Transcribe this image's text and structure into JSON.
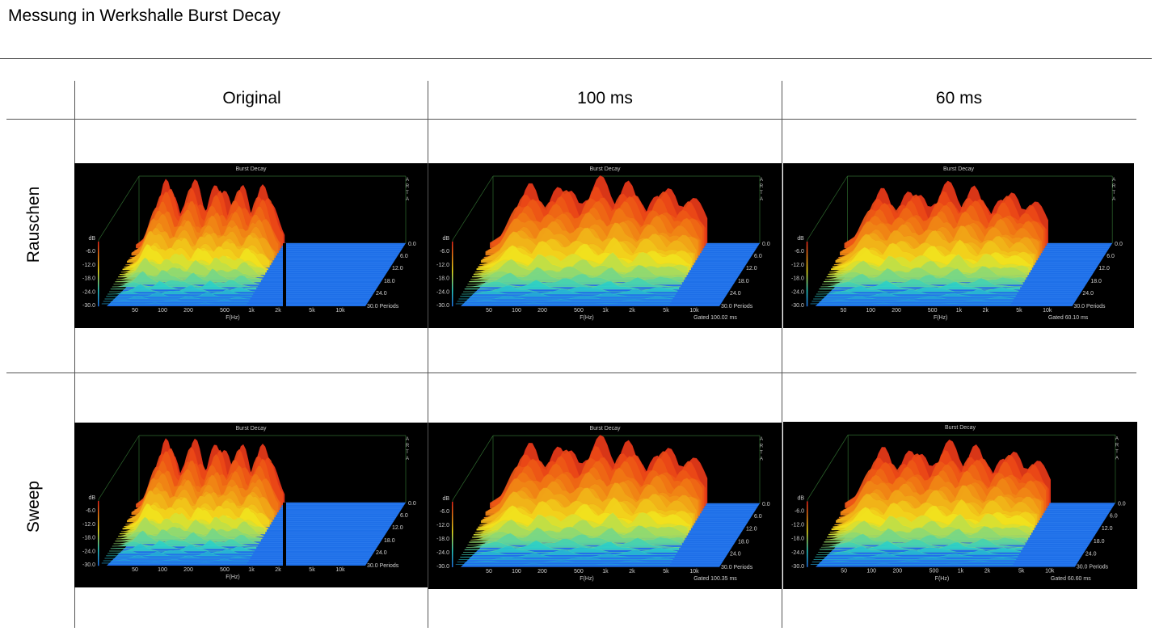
{
  "page": {
    "title": "Messung in Werkshalle Burst Decay"
  },
  "columns": [
    {
      "label": "Original"
    },
    {
      "label": "100 ms"
    },
    {
      "label": "60 ms"
    }
  ],
  "rows": [
    {
      "label": "Rauschen"
    },
    {
      "label": "Sweep"
    }
  ],
  "plot_common": {
    "title": "Burst Decay",
    "logo": "ARTA",
    "db_unit": "dB",
    "db_ticks": [
      "-6.0",
      "-12.0",
      "-18.0",
      "-24.0",
      "-30.0"
    ],
    "freq_ticks": [
      "50",
      "100",
      "200",
      "500",
      "1k",
      "2k",
      "5k",
      "10k"
    ],
    "x_label": "F(Hz)",
    "period_ticks": [
      "0.0",
      "6.0",
      "12.0",
      "18.0",
      "24.0",
      "30.0 Periods"
    ]
  },
  "plots": [
    {
      "row": "Rauschen",
      "column": "Original",
      "gated": ""
    },
    {
      "row": "Rauschen",
      "column": "100 ms",
      "gated": "Gated 100.02 ms"
    },
    {
      "row": "Rauschen",
      "column": "60 ms",
      "gated": "Gated 60.10 ms"
    },
    {
      "row": "Sweep",
      "column": "Original",
      "gated": ""
    },
    {
      "row": "Sweep",
      "column": "100 ms",
      "gated": "Gated 100.35 ms"
    },
    {
      "row": "Sweep",
      "column": "60 ms",
      "gated": "Gated 60.60 ms"
    }
  ],
  "colors": {
    "background": "#000000",
    "floor": "#1e6fe8",
    "peak": "#e8261a",
    "mid": "#f2e21c",
    "low": "#2ad0c8"
  }
}
